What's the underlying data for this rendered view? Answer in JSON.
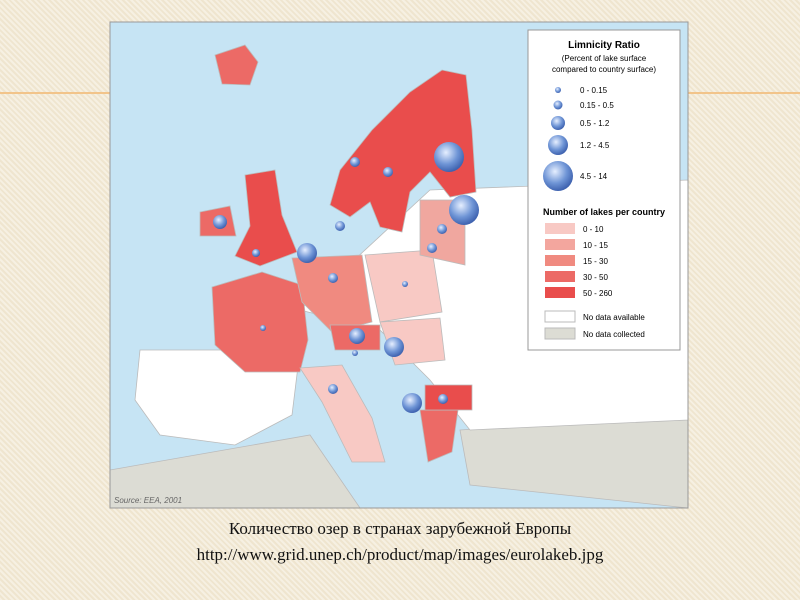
{
  "map": {
    "legend": {
      "ratio_title": "Limnicity Ratio",
      "ratio_subtitle": [
        "(Percent of lake surface",
        "compared to country surface)"
      ],
      "ratio_classes": [
        "0 - 0.15",
        "0.15 - 0.5",
        "0.5 - 1.2",
        "1.2 - 4.5",
        "4.5 - 14"
      ],
      "lakes_title": "Number of lakes per country",
      "lake_classes": [
        "0 - 10",
        "10 - 15",
        "15 - 30",
        "30 - 50",
        "50 - 260"
      ],
      "other_classes": [
        "No data available",
        "No data collected"
      ]
    },
    "source": "Source: EEA, 2001"
  },
  "caption": {
    "title": "Количество озер в странах зарубежной Европы",
    "url": "http://www.grid.unep.ch/product/map/images/eurolakeb.jpg"
  }
}
